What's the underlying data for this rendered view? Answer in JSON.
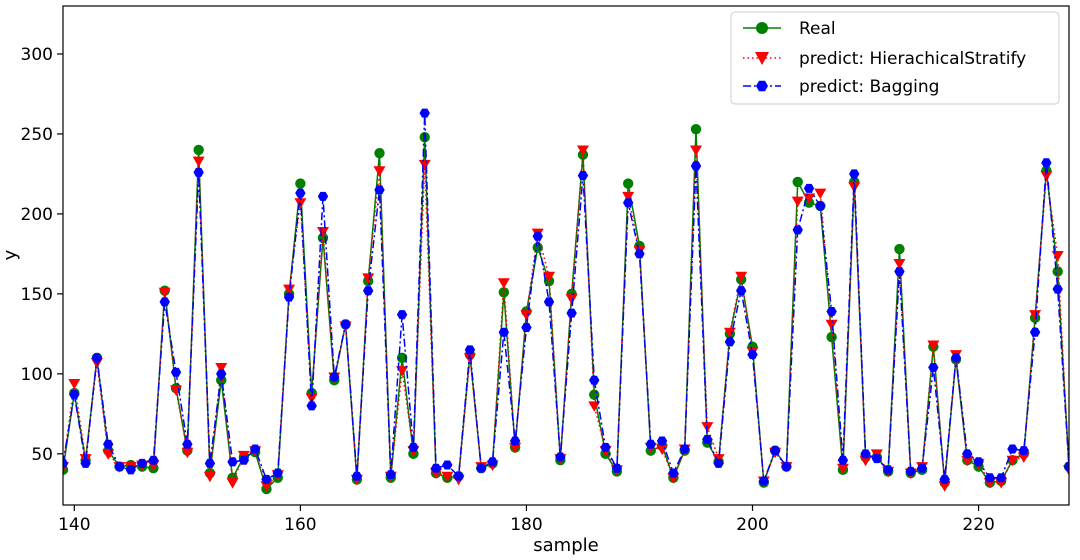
{
  "chart_data": {
    "type": "line",
    "title": "",
    "xlabel": "sample",
    "ylabel": "y",
    "xlim": [
      139,
      228
    ],
    "ylim": [
      18,
      330
    ],
    "xticks": [
      140,
      160,
      180,
      200,
      220
    ],
    "yticks": [
      50,
      100,
      150,
      200,
      250,
      300
    ],
    "grid": false,
    "legend": "top-right",
    "x": [
      139,
      140,
      141,
      142,
      143,
      144,
      145,
      146,
      147,
      148,
      149,
      150,
      151,
      152,
      153,
      154,
      155,
      156,
      157,
      158,
      159,
      160,
      161,
      162,
      163,
      164,
      165,
      166,
      167,
      168,
      169,
      170,
      171,
      172,
      173,
      174,
      175,
      176,
      177,
      178,
      179,
      180,
      181,
      182,
      183,
      184,
      185,
      186,
      187,
      188,
      189,
      190,
      191,
      192,
      193,
      194,
      195,
      196,
      197,
      198,
      199,
      200,
      201,
      202,
      203,
      204,
      205,
      206,
      207,
      208,
      209,
      210,
      211,
      212,
      213,
      214,
      215,
      216,
      217,
      218,
      219,
      220,
      221,
      222,
      223,
      224,
      225,
      226,
      227,
      228
    ],
    "series": [
      {
        "name": "Real",
        "color": "#008000",
        "linestyle": "solid",
        "marker": "circle",
        "values": [
          40,
          88,
          46,
          110,
          52,
          42,
          43,
          42,
          41,
          152,
          91,
          52,
          240,
          38,
          96,
          35,
          48,
          51,
          28,
          35,
          150,
          219,
          88,
          185,
          96,
          131,
          34,
          158,
          238,
          35,
          110,
          50,
          248,
          38,
          35,
          36,
          112,
          41,
          44,
          151,
          54,
          139,
          179,
          158,
          46,
          150,
          237,
          87,
          50,
          39,
          219,
          180,
          52,
          55,
          35,
          52,
          253,
          57,
          45,
          125,
          159,
          117,
          32,
          52,
          42,
          220,
          207,
          205,
          123,
          40,
          220,
          48,
          48,
          39,
          178,
          38,
          40,
          117,
          32,
          109,
          46,
          42,
          32,
          33,
          46,
          50,
          135,
          227,
          164,
          42
        ]
      },
      {
        "name": "predict: HierachicalStratify",
        "color": "#ff0000",
        "linestyle": "dotted",
        "marker": "triangle-down",
        "values": [
          42,
          94,
          47,
          107,
          50,
          42,
          42,
          43,
          43,
          151,
          90,
          51,
          233,
          36,
          104,
          32,
          49,
          52,
          30,
          37,
          153,
          207,
          85,
          189,
          98,
          130,
          34,
          160,
          227,
          36,
          102,
          52,
          231,
          38,
          36,
          34,
          110,
          42,
          43,
          157,
          54,
          137,
          188,
          161,
          47,
          147,
          240,
          80,
          52,
          40,
          211,
          177,
          54,
          53,
          35,
          53,
          240,
          67,
          47,
          126,
          161,
          114,
          33,
          51,
          42,
          208,
          210,
          213,
          131,
          41,
          217,
          46,
          50,
          39,
          169,
          38,
          42,
          118,
          30,
          112,
          46,
          44,
          32,
          32,
          46,
          48,
          137,
          224,
          174,
          40
        ]
      },
      {
        "name": "predict: Bagging",
        "color": "#0000ff",
        "linestyle": "dashdot",
        "marker": "hexagon",
        "values": [
          44,
          87,
          44,
          110,
          56,
          42,
          40,
          44,
          46,
          145,
          101,
          56,
          226,
          44,
          100,
          45,
          46,
          53,
          34,
          38,
          148,
          213,
          80,
          211,
          98,
          131,
          36,
          152,
          215,
          37,
          137,
          54,
          263,
          41,
          43,
          36,
          115,
          41,
          45,
          126,
          58,
          129,
          186,
          145,
          48,
          138,
          224,
          96,
          54,
          41,
          207,
          175,
          56,
          58,
          38,
          53,
          230,
          59,
          44,
          120,
          152,
          112,
          33,
          52,
          42,
          190,
          216,
          205,
          139,
          46,
          225,
          50,
          47,
          40,
          164,
          39,
          41,
          104,
          34,
          110,
          50,
          45,
          35,
          35,
          53,
          52,
          126,
          232,
          153,
          42
        ]
      }
    ]
  }
}
